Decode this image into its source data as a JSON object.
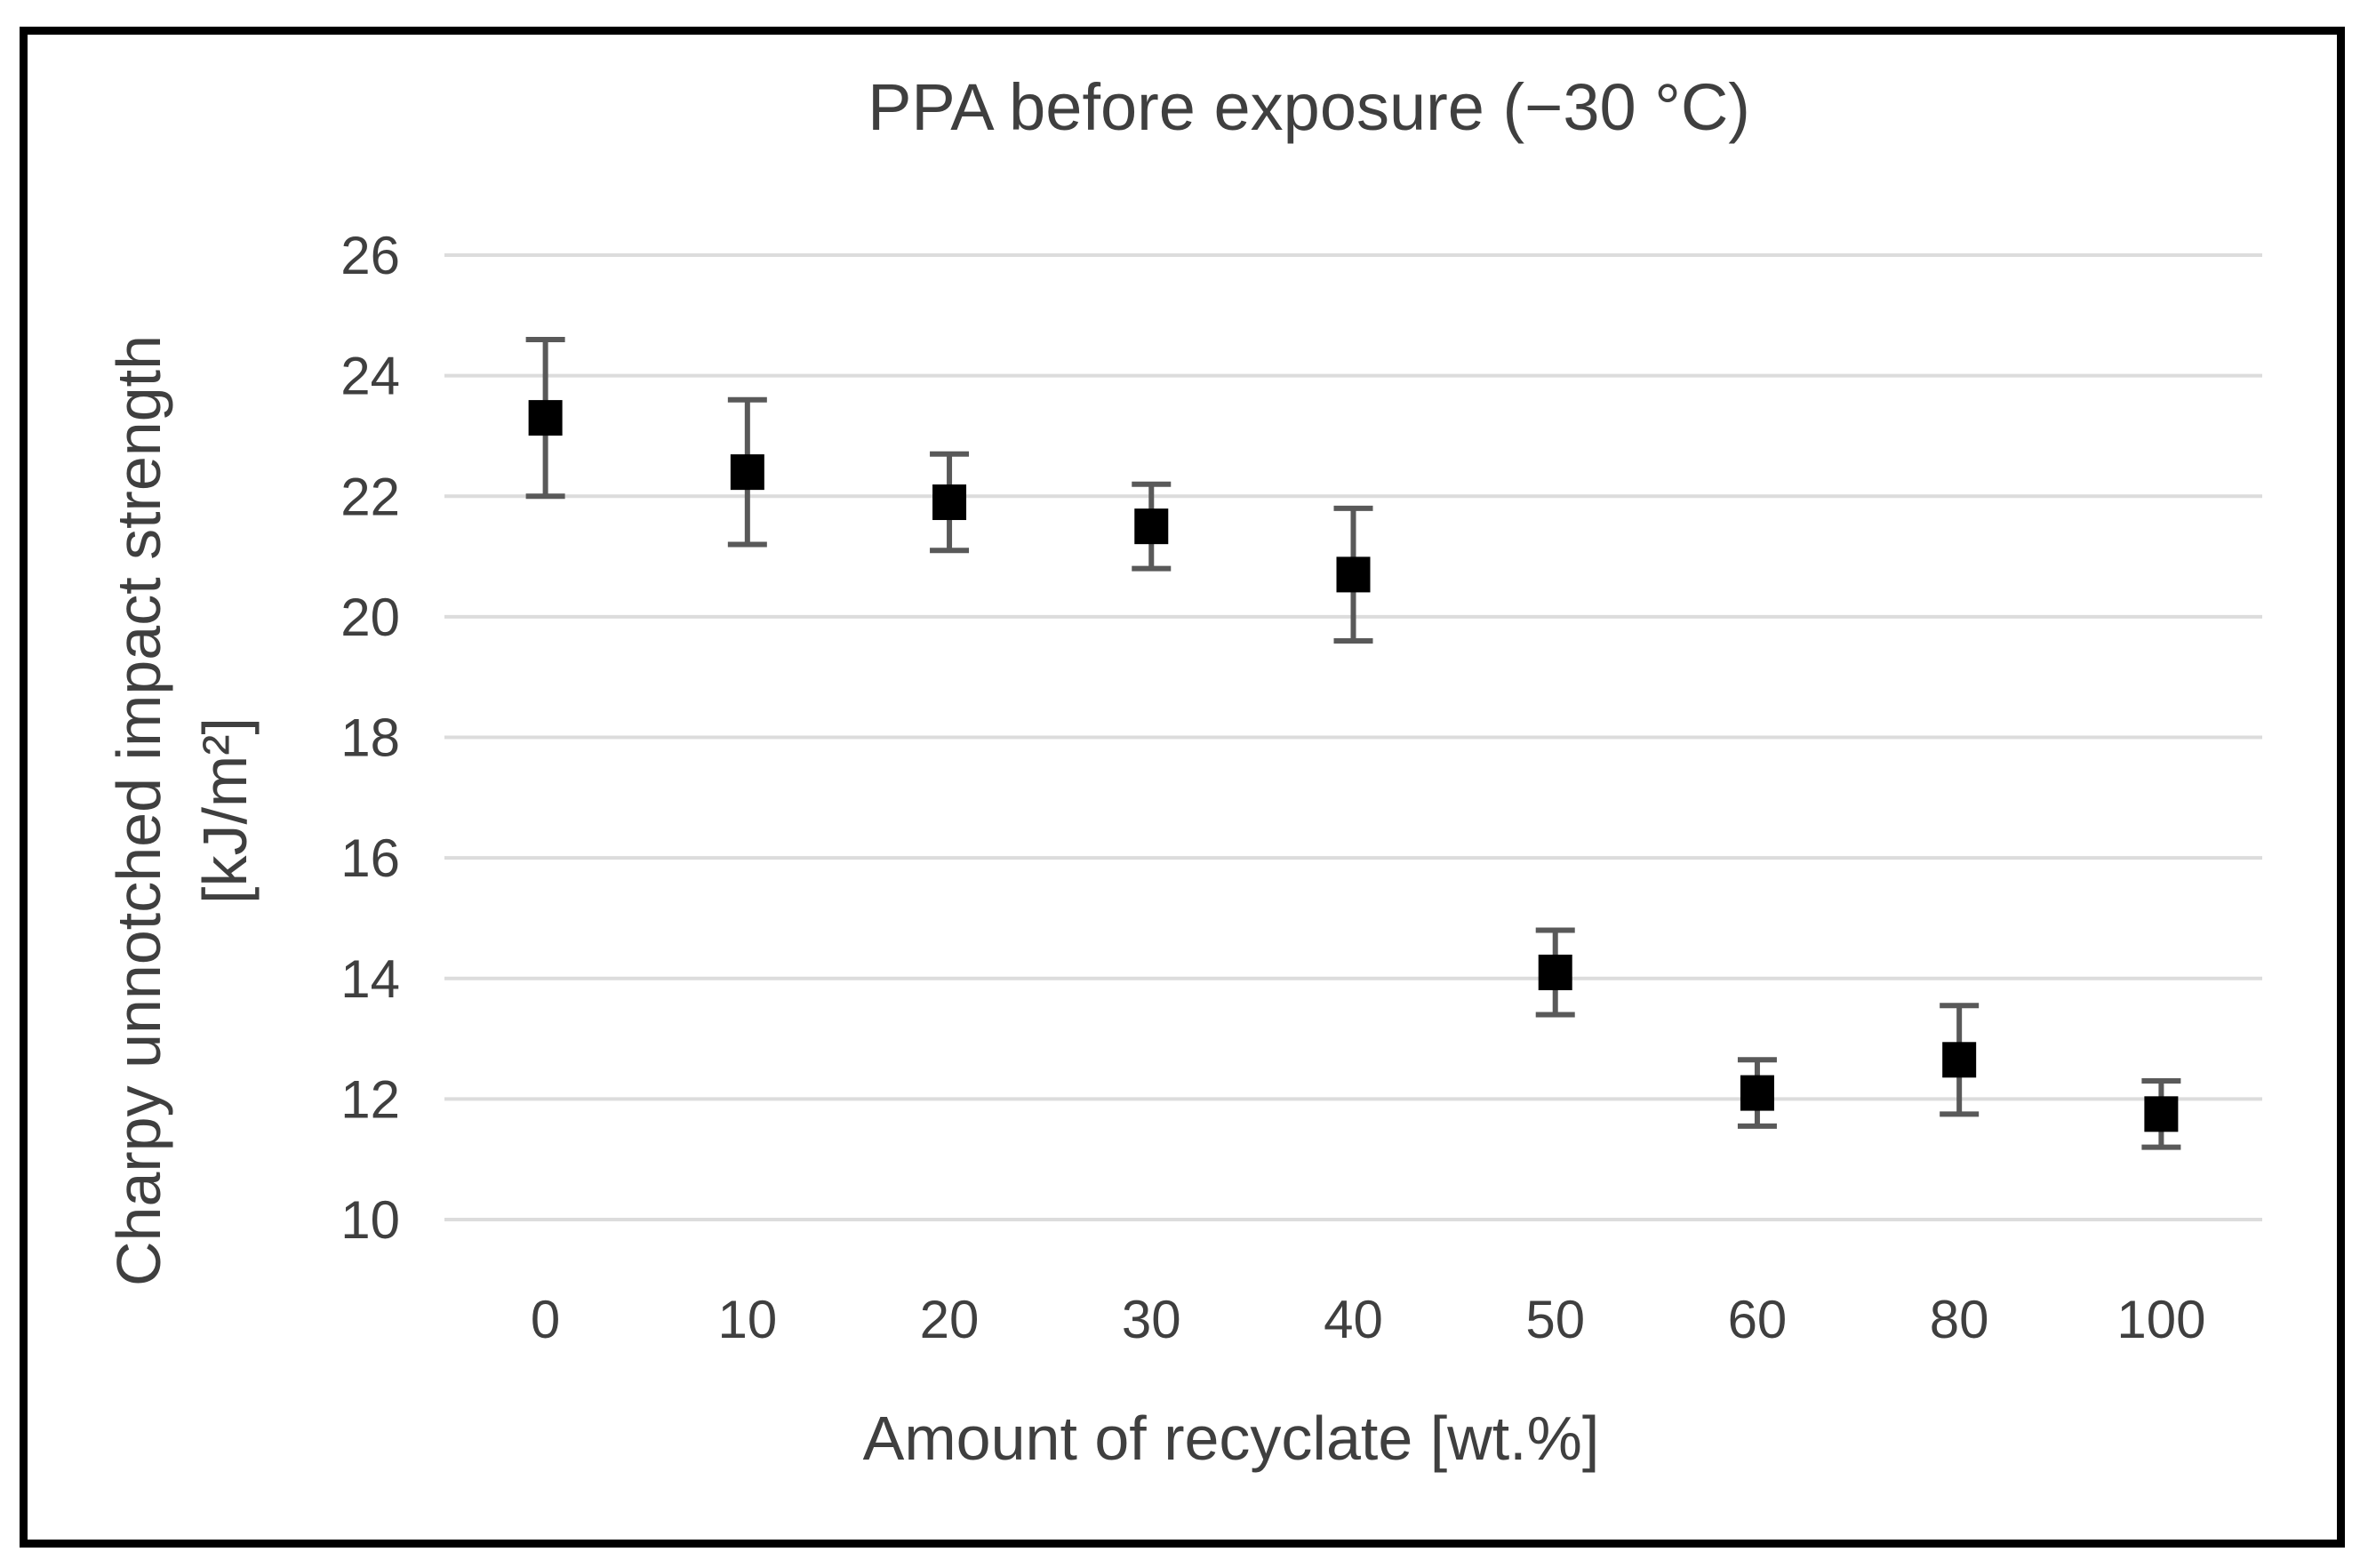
{
  "chart_data": {
    "type": "scatter",
    "title": "PPA before exposure (−30 °C)",
    "xlabel": "Amount of recyclate [wt.%]",
    "ylabel": "Charpy unnotched impact strength [kJ/m²]",
    "ylabel_line1": "Charpy unnotched impact strength",
    "ylabel_line2": "[kJ/m²]",
    "categories": [
      "0",
      "10",
      "20",
      "30",
      "40",
      "50",
      "60",
      "80",
      "100"
    ],
    "series": [
      {
        "name": "PPA before exposure (−30 °C)",
        "values": [
          23.3,
          22.4,
          21.9,
          21.5,
          20.7,
          14.1,
          12.1,
          12.65,
          11.75
        ],
        "errors": [
          1.3,
          1.2,
          0.8,
          0.7,
          1.1,
          0.7,
          0.55,
          0.9,
          0.55
        ]
      }
    ],
    "ylim": [
      10,
      26
    ],
    "yticks": [
      10,
      12,
      14,
      16,
      18,
      20,
      22,
      24,
      26
    ],
    "grid": "horizontal",
    "legend": "none",
    "marker_shape": "square",
    "colors": {
      "marker": "#000000",
      "error_bar": "#595959",
      "gridline": "#dcdcdc",
      "text": "#3f3f3f",
      "frame": "#000000",
      "background": "#ffffff"
    }
  }
}
